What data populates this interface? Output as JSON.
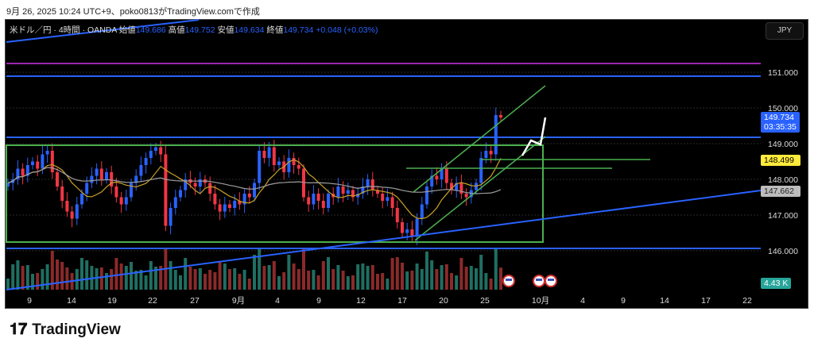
{
  "caption": "9月 26, 2025 10:24 UTC+9、poko0813がTradingView.comで作成",
  "legend": {
    "symbol": "米ドル／円 · 4時間 · OANDA",
    "open_label": "始値",
    "open": "149.686",
    "high_label": "高値",
    "high": "149.752",
    "low_label": "安値",
    "low": "149.634",
    "close_label": "終値",
    "close": "149.734",
    "change": "+0.048 (+0.03%)"
  },
  "currency_button": "JPY",
  "price_tags": {
    "last": "149.734",
    "countdown": "03:35:35",
    "yellow": "148.499",
    "gray": "147.662",
    "volume": "4.43 K"
  },
  "colors": {
    "up": "#2962ff",
    "down": "#f23645",
    "vol_up": "#1f6f62",
    "vol_down": "#8b2a2a",
    "ma_short": "#c9a227",
    "ma_long": "#9e9e9e",
    "drawing_green": "#4caf50",
    "drawing_blue": "#2962ff",
    "purple": "#9c27b0"
  },
  "logo": "TradingView",
  "chart_data": {
    "type": "candlestick",
    "ylim": [
      145.0,
      151.8
    ],
    "y_ticks": [
      "151.000",
      "150.000",
      "149.000",
      "148.000",
      "147.000",
      "146.000"
    ],
    "x_ticks": [
      "9",
      "14",
      "19",
      "22",
      "27",
      "9月",
      "4",
      "9",
      "12",
      "17",
      "20",
      "25",
      "10月",
      "4",
      "9",
      "14",
      "17",
      "22"
    ],
    "closes": [
      147.9,
      148.0,
      148.3,
      148.1,
      148.4,
      148.5,
      148.3,
      148.7,
      148.8,
      148.2,
      147.8,
      147.4,
      147.1,
      146.9,
      147.3,
      147.6,
      147.9,
      148.1,
      148.3,
      148.0,
      148.2,
      147.8,
      147.5,
      147.3,
      147.5,
      147.9,
      148.1,
      148.4,
      148.6,
      148.8,
      148.9,
      148.7,
      146.7,
      147.2,
      147.5,
      147.7,
      148.0,
      147.9,
      147.8,
      148.0,
      147.9,
      147.6,
      147.3,
      147.1,
      147.3,
      147.2,
      147.4,
      147.3,
      147.6,
      147.5,
      147.9,
      148.8,
      148.6,
      148.9,
      148.4,
      148.5,
      148.2,
      148.6,
      148.4,
      148.3,
      147.5,
      147.3,
      147.6,
      147.4,
      147.2,
      147.6,
      147.5,
      147.8,
      147.6,
      147.7,
      147.5,
      147.6,
      147.8,
      148.0,
      147.7,
      147.6,
      147.4,
      147.5,
      147.2,
      146.8,
      146.5,
      146.6,
      146.4,
      146.9,
      147.3,
      147.8,
      148.1,
      148.0,
      148.3,
      147.9,
      147.7,
      147.9,
      147.6,
      147.5,
      147.7,
      147.9,
      148.6,
      148.8,
      148.7,
      149.8,
      149.73
    ]
  }
}
